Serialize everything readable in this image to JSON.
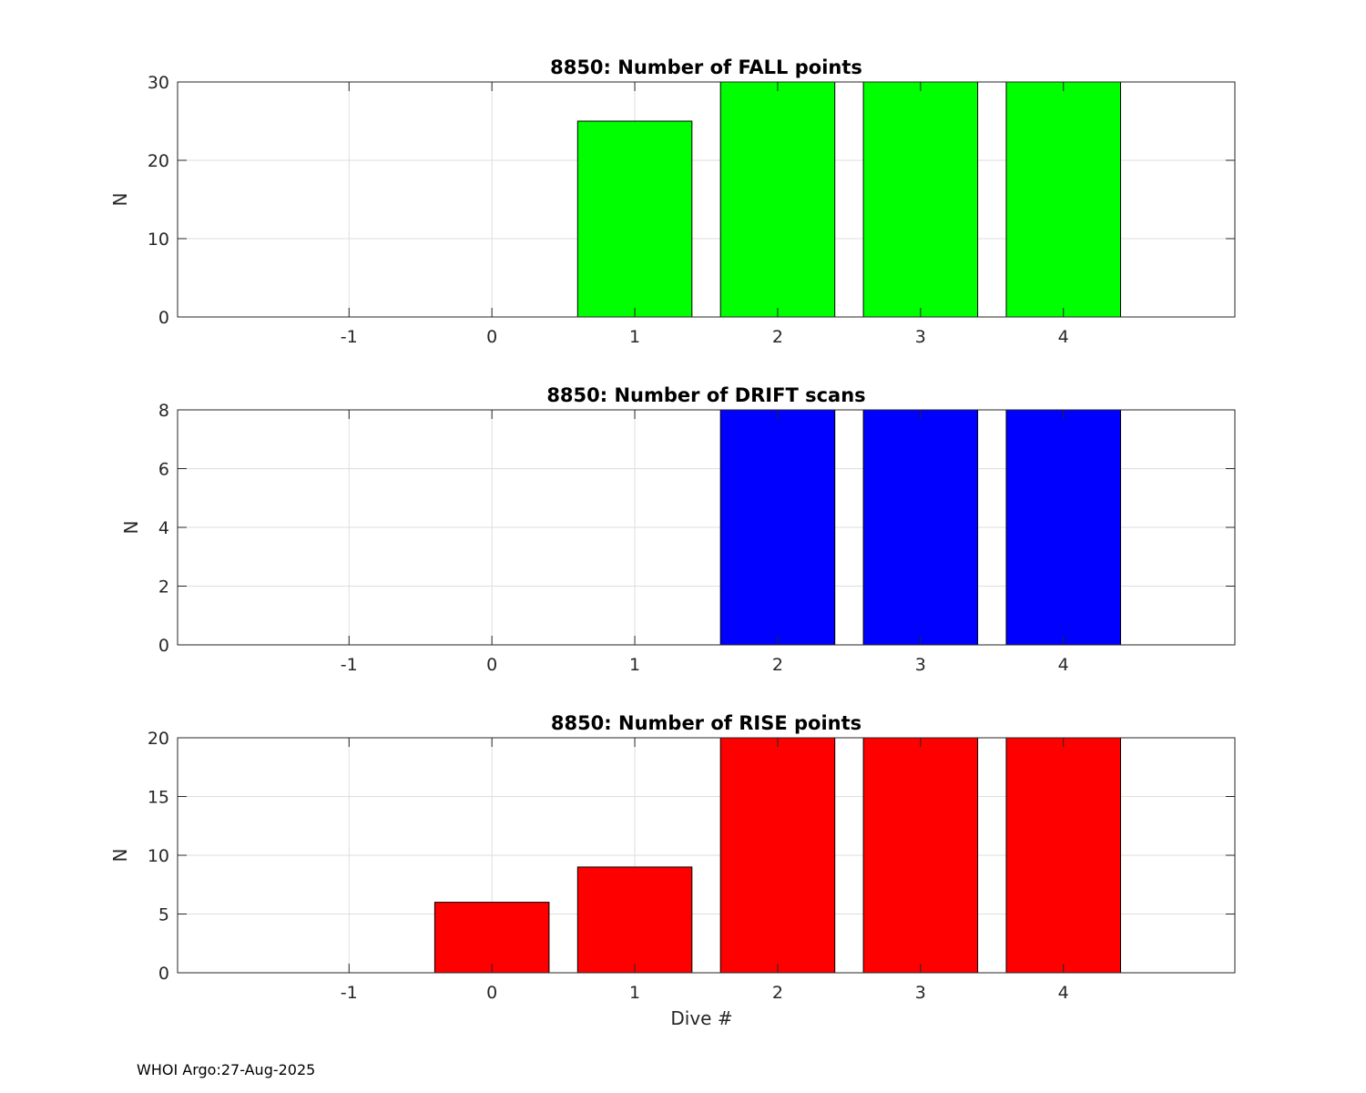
{
  "footer": {
    "text": "WHOI Argo:27-Aug-2025"
  },
  "chart_data": [
    {
      "type": "bar",
      "title": "8850: Number of FALL points",
      "xlabel": "",
      "ylabel": "N",
      "x": [
        1,
        2,
        3,
        4
      ],
      "values": [
        25,
        30,
        30,
        30
      ],
      "xlim": [
        -2.2,
        5.2
      ],
      "ylim": [
        0,
        30
      ],
      "xticks": [
        -1,
        0,
        1,
        2,
        3,
        4
      ],
      "yticks": [
        0,
        10,
        20,
        30
      ],
      "color": "#00ff00",
      "grid": true,
      "legend": "none"
    },
    {
      "type": "bar",
      "title": "8850: Number of DRIFT scans",
      "xlabel": "",
      "ylabel": "N",
      "x": [
        2,
        3,
        4
      ],
      "values": [
        8,
        8,
        8
      ],
      "xlim": [
        -2.2,
        5.2
      ],
      "ylim": [
        0,
        8
      ],
      "xticks": [
        -1,
        0,
        1,
        2,
        3,
        4
      ],
      "yticks": [
        0,
        2,
        4,
        6,
        8
      ],
      "color": "#0000ff",
      "grid": true,
      "legend": "none"
    },
    {
      "type": "bar",
      "title": "8850: Number of RISE points",
      "xlabel": "Dive #",
      "ylabel": "N",
      "x": [
        0,
        1,
        2,
        3,
        4
      ],
      "values": [
        6,
        9,
        20,
        20,
        20
      ],
      "xlim": [
        -2.2,
        5.2
      ],
      "ylim": [
        0,
        20
      ],
      "xticks": [
        -1,
        0,
        1,
        2,
        3,
        4
      ],
      "yticks": [
        0,
        5,
        10,
        15,
        20
      ],
      "color": "#ff0000",
      "grid": true,
      "legend": "none"
    }
  ]
}
